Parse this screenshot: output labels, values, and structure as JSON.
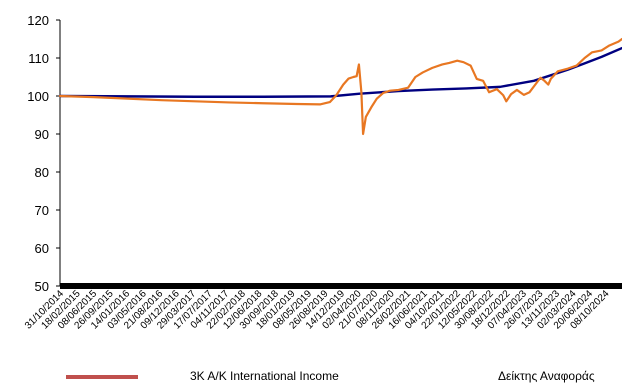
{
  "chart_data": {
    "type": "line",
    "title": "",
    "xlabel": "",
    "ylabel": "",
    "ylim": [
      50,
      120
    ],
    "yticks": [
      50,
      60,
      70,
      80,
      90,
      100,
      110,
      120
    ],
    "x_tick_labels": [
      "31/10/2014",
      "18/02/2015",
      "08/06/2015",
      "26/09/2015",
      "14/01/2016",
      "03/05/2016",
      "21/08/2016",
      "09/12/2016",
      "29/03/2017",
      "17/07/2017",
      "04/11/2017",
      "22/02/2018",
      "12/06/2018",
      "30/09/2018",
      "18/01/2019",
      "08/05/2019",
      "26/08/2019",
      "14/12/2019",
      "02/04/2020",
      "21/07/2020",
      "08/11/2020",
      "26/02/2021",
      "16/06/2021",
      "04/10/2021",
      "22/01/2022",
      "12/05/2022",
      "30/08/2022",
      "18/12/2022",
      "07/04/2023",
      "26/07/2023",
      "13/11/2023",
      "02/03/2024",
      "20/06/2024",
      "08/10/2024"
    ],
    "x_start": "2014-10-31",
    "x_end": "2024-10-31",
    "grid": false,
    "series": [
      {
        "name": "Δείκτης Αναφοράς",
        "color": "#000080",
        "points": [
          [
            "2014-10-31",
            100.0
          ],
          [
            "2016-01-14",
            99.9
          ],
          [
            "2017-03-29",
            99.8
          ],
          [
            "2018-06-12",
            99.8
          ],
          [
            "2019-08-26",
            99.9
          ],
          [
            "2020-03-01",
            100.6
          ],
          [
            "2020-11-08",
            101.3
          ],
          [
            "2021-06-16",
            101.7
          ],
          [
            "2022-01-22",
            102.0
          ],
          [
            "2022-08-30",
            102.4
          ],
          [
            "2023-04-07",
            104.0
          ],
          [
            "2023-11-13",
            106.9
          ],
          [
            "2024-03-02",
            108.6
          ],
          [
            "2024-06-20",
            110.3
          ],
          [
            "2024-10-31",
            112.6
          ]
        ]
      },
      {
        "name": "3K A/K International Income",
        "color": "#e87722",
        "points": [
          [
            "2014-10-31",
            100.0
          ],
          [
            "2015-06-08",
            99.7
          ],
          [
            "2016-01-14",
            99.3
          ],
          [
            "2016-08-21",
            98.9
          ],
          [
            "2017-03-29",
            98.6
          ],
          [
            "2017-11-04",
            98.3
          ],
          [
            "2018-06-12",
            98.1
          ],
          [
            "2019-01-18",
            97.9
          ],
          [
            "2019-06-20",
            97.8
          ],
          [
            "2019-08-20",
            98.4
          ],
          [
            "2019-10-01",
            100.2
          ],
          [
            "2019-11-15",
            103.0
          ],
          [
            "2019-12-20",
            104.6
          ],
          [
            "2020-01-20",
            105.0
          ],
          [
            "2020-02-10",
            105.2
          ],
          [
            "2020-02-25",
            108.3
          ],
          [
            "2020-03-12",
            101.0
          ],
          [
            "2020-03-23",
            90.0
          ],
          [
            "2020-04-10",
            94.5
          ],
          [
            "2020-05-15",
            97.0
          ],
          [
            "2020-06-20",
            99.3
          ],
          [
            "2020-08-01",
            100.8
          ],
          [
            "2020-09-15",
            101.4
          ],
          [
            "2020-11-08",
            101.6
          ],
          [
            "2021-01-10",
            102.2
          ],
          [
            "2021-02-26",
            105.0
          ],
          [
            "2021-04-15",
            106.2
          ],
          [
            "2021-06-16",
            107.4
          ],
          [
            "2021-08-20",
            108.3
          ],
          [
            "2021-10-04",
            108.7
          ],
          [
            "2021-11-25",
            109.3
          ],
          [
            "2022-01-05",
            108.9
          ],
          [
            "2022-02-20",
            108.0
          ],
          [
            "2022-04-01",
            104.5
          ],
          [
            "2022-05-12",
            104.0
          ],
          [
            "2022-06-20",
            101.0
          ],
          [
            "2022-08-10",
            101.8
          ],
          [
            "2022-09-20",
            100.2
          ],
          [
            "2022-10-10",
            98.6
          ],
          [
            "2022-11-10",
            100.5
          ],
          [
            "2022-12-18",
            101.6
          ],
          [
            "2023-02-01",
            100.3
          ],
          [
            "2023-03-10",
            101.0
          ],
          [
            "2023-04-07",
            102.5
          ],
          [
            "2023-05-20",
            104.8
          ],
          [
            "2023-06-15",
            104.0
          ],
          [
            "2023-07-10",
            103.0
          ],
          [
            "2023-07-26",
            104.5
          ],
          [
            "2023-09-10",
            106.5
          ],
          [
            "2023-11-13",
            107.2
          ],
          [
            "2024-01-10",
            108.0
          ],
          [
            "2024-03-02",
            110.0
          ],
          [
            "2024-04-20",
            111.5
          ],
          [
            "2024-06-20",
            112.0
          ],
          [
            "2024-08-10",
            113.3
          ],
          [
            "2024-10-08",
            114.3
          ],
          [
            "2024-10-31",
            115.0
          ]
        ]
      }
    ]
  },
  "legend": {
    "label_fund": "3K A/K International Income",
    "label_benchmark": "Δείκτης Αναφοράς",
    "fund_swatch_color": "#c0504d"
  }
}
